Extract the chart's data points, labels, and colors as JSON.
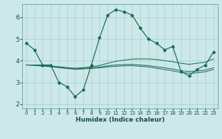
{
  "title": "",
  "xlabel": "Humidex (Indice chaleur)",
  "bg_color": "#cce8e8",
  "line_color": "#1a6b5a",
  "grid_color": "#aacccc",
  "grid_minor_color": "#bbdddd",
  "xlim": [
    -0.5,
    23.5
  ],
  "ylim": [
    1.8,
    6.6
  ],
  "yticks": [
    2,
    3,
    4,
    5,
    6
  ],
  "xticks": [
    0,
    1,
    2,
    3,
    4,
    5,
    6,
    7,
    8,
    9,
    10,
    11,
    12,
    13,
    14,
    15,
    16,
    17,
    18,
    19,
    20,
    21,
    22,
    23
  ],
  "series_main": {
    "x": [
      0,
      1,
      2,
      3,
      4,
      5,
      6,
      7,
      8,
      9,
      10,
      11,
      12,
      13,
      14,
      15,
      16,
      17,
      18,
      19,
      20,
      21,
      22,
      23
    ],
    "y": [
      4.8,
      4.5,
      3.8,
      3.8,
      3.0,
      2.8,
      2.35,
      2.65,
      3.8,
      5.05,
      6.1,
      6.35,
      6.25,
      6.1,
      5.5,
      5.0,
      4.8,
      4.5,
      4.65,
      3.5,
      3.3,
      3.6,
      3.8,
      4.4
    ]
  },
  "series_flat": [
    [
      3.8,
      3.8,
      3.8,
      3.75,
      3.72,
      3.68,
      3.65,
      3.68,
      3.72,
      3.78,
      3.88,
      3.97,
      4.02,
      4.07,
      4.08,
      4.08,
      4.05,
      4.0,
      3.95,
      3.88,
      3.83,
      3.88,
      3.93,
      4.08
    ],
    [
      3.8,
      3.79,
      3.76,
      3.73,
      3.69,
      3.65,
      3.62,
      3.64,
      3.67,
      3.71,
      3.76,
      3.8,
      3.82,
      3.83,
      3.8,
      3.77,
      3.72,
      3.67,
      3.61,
      3.54,
      3.5,
      3.52,
      3.57,
      3.67
    ],
    [
      3.8,
      3.78,
      3.75,
      3.72,
      3.68,
      3.64,
      3.6,
      3.62,
      3.64,
      3.67,
      3.71,
      3.74,
      3.76,
      3.77,
      3.74,
      3.71,
      3.65,
      3.59,
      3.53,
      3.46,
      3.42,
      3.44,
      3.49,
      3.59
    ]
  ]
}
